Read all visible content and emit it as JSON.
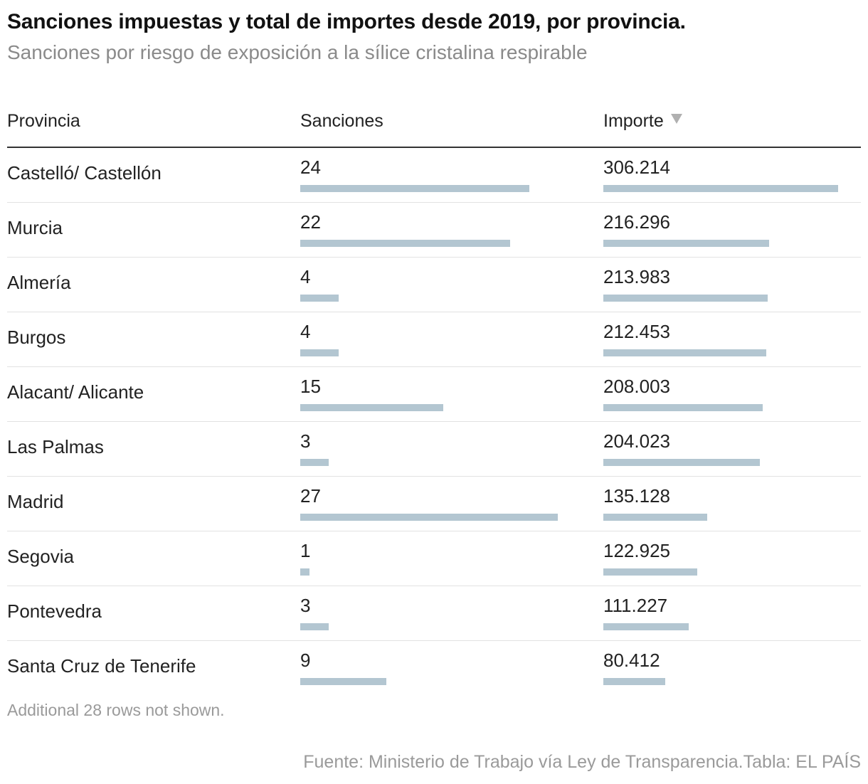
{
  "title": "Sanciones impuestas y total de importes desde 2019, por provincia.",
  "subtitle": "Sanciones por riesgo de exposición a la sílice cristalina respirable",
  "note": "Additional 28 rows not shown.",
  "source": "Fuente: Ministerio de Trabajo vía Ley de Transparencia.Tabla: EL PAÍS",
  "colors": {
    "bar": "#b3c6d1",
    "header_rule": "#333333",
    "muted_text": "#8a8a8a"
  },
  "icons": {
    "sort": "sort-descending-triangle-icon"
  },
  "chart_data": {
    "type": "table",
    "columns": [
      "Provincia",
      "Sanciones",
      "Importe"
    ],
    "sorted_by": "Importe",
    "sort_direction": "descending",
    "sanciones_max": 27,
    "importe_max": 306214,
    "rows": [
      {
        "provincia": "Castelló/ Castellón",
        "sanciones": 24,
        "sanciones_label": "24",
        "importe": 306214,
        "importe_label": "306.214"
      },
      {
        "provincia": "Murcia",
        "sanciones": 22,
        "sanciones_label": "22",
        "importe": 216296,
        "importe_label": "216.296"
      },
      {
        "provincia": "Almería",
        "sanciones": 4,
        "sanciones_label": "4",
        "importe": 213983,
        "importe_label": "213.983"
      },
      {
        "provincia": "Burgos",
        "sanciones": 4,
        "sanciones_label": "4",
        "importe": 212453,
        "importe_label": "212.453"
      },
      {
        "provincia": "Alacant/ Alicante",
        "sanciones": 15,
        "sanciones_label": "15",
        "importe": 208003,
        "importe_label": "208.003"
      },
      {
        "provincia": "Las Palmas",
        "sanciones": 3,
        "sanciones_label": "3",
        "importe": 204023,
        "importe_label": "204.023"
      },
      {
        "provincia": "Madrid",
        "sanciones": 27,
        "sanciones_label": "27",
        "importe": 135128,
        "importe_label": "135.128"
      },
      {
        "provincia": "Segovia",
        "sanciones": 1,
        "sanciones_label": "1",
        "importe": 122925,
        "importe_label": "122.925"
      },
      {
        "provincia": "Pontevedra",
        "sanciones": 3,
        "sanciones_label": "3",
        "importe": 111227,
        "importe_label": "111.227"
      },
      {
        "provincia": "Santa Cruz de Tenerife",
        "sanciones": 9,
        "sanciones_label": "9",
        "importe": 80412,
        "importe_label": "80.412"
      }
    ]
  }
}
